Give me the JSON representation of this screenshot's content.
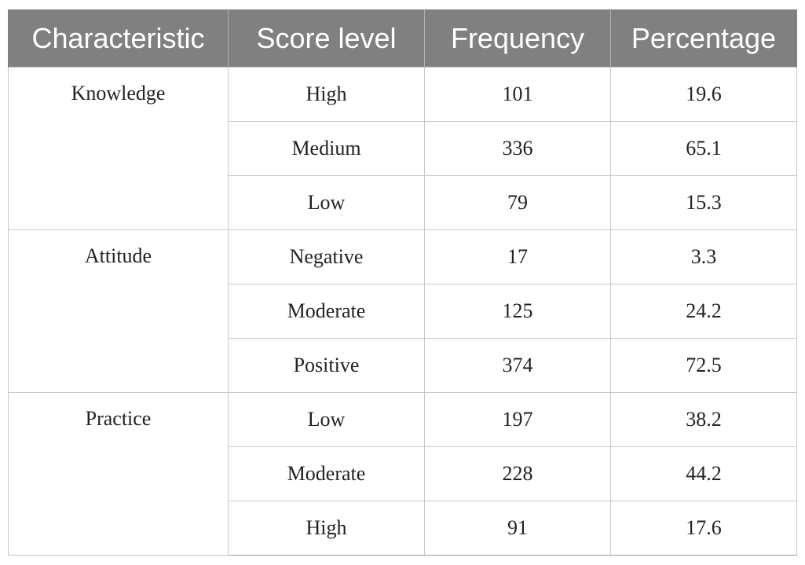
{
  "table": {
    "headers": [
      "Characteristic",
      "Score level",
      "Frequency",
      "Percentage"
    ],
    "groups": [
      {
        "characteristic": "Knowledge",
        "rows": [
          {
            "score_level": "High",
            "frequency": "101",
            "percentage": "19.6"
          },
          {
            "score_level": "Medium",
            "frequency": "336",
            "percentage": "65.1"
          },
          {
            "score_level": "Low",
            "frequency": "79",
            "percentage": "15.3"
          }
        ]
      },
      {
        "characteristic": "Attitude",
        "rows": [
          {
            "score_level": "Negative",
            "frequency": "17",
            "percentage": "3.3"
          },
          {
            "score_level": "Moderate",
            "frequency": "125",
            "percentage": "24.2"
          },
          {
            "score_level": "Positive",
            "frequency": "374",
            "percentage": "72.5"
          }
        ]
      },
      {
        "characteristic": "Practice",
        "rows": [
          {
            "score_level": "Low",
            "frequency": "197",
            "percentage": "38.2"
          },
          {
            "score_level": "Moderate",
            "frequency": "228",
            "percentage": "44.2"
          },
          {
            "score_level": "High",
            "frequency": "91",
            "percentage": "17.6"
          }
        ]
      }
    ]
  },
  "colors": {
    "header_background": "#808080",
    "header_text": "#ffffff",
    "grid_line": "#c8c8c8"
  }
}
